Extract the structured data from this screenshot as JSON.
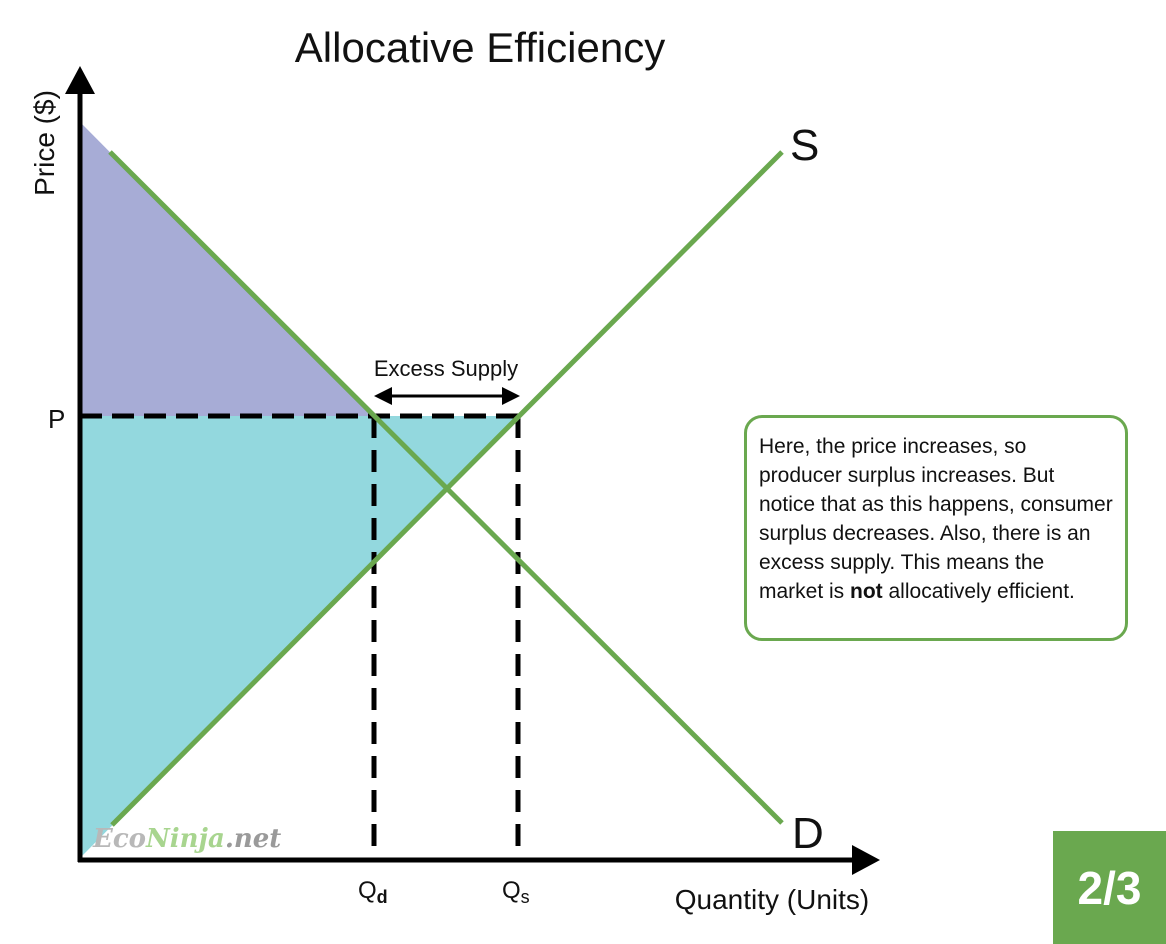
{
  "title": "Allocative Efficiency",
  "axes": {
    "y_label": "Price ($)",
    "x_label": "Quantity (Units)",
    "price_label": "P",
    "qd_label": "Q",
    "qd_sub": "d",
    "qs_label": "Q",
    "qs_sub": "s"
  },
  "curves": {
    "supply_label": "S",
    "demand_label": "D"
  },
  "annotation": {
    "excess_label": "Excess Supply"
  },
  "note": {
    "text_before": "Here, the price increases, so producer surplus increases. But notice that as this happens, consumer surplus decreases. Also, there is an excess supply. This means the market is ",
    "text_bold": "not",
    "text_after": " allocatively efficient."
  },
  "logo": {
    "part1": "Eco",
    "part2": "Ninja",
    "part3": ".net"
  },
  "badge": "2/3",
  "colors": {
    "curve": "#6aa84f",
    "consumer_surplus": "#a7acd6",
    "producer_surplus": "#93d8de",
    "axis": "#000000"
  }
}
